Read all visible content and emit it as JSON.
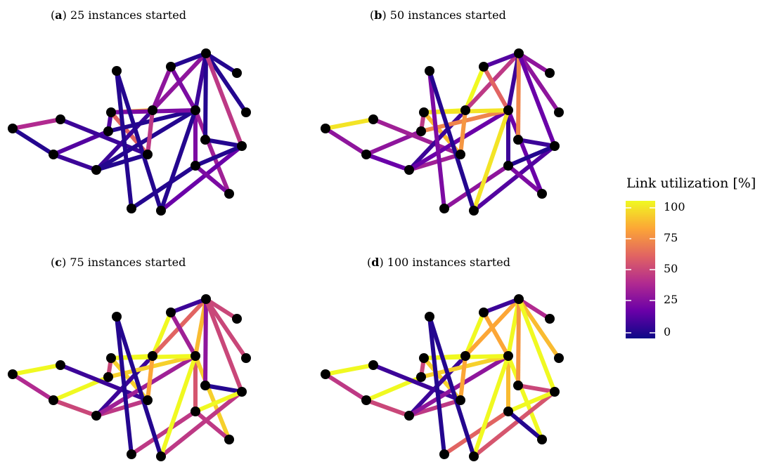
{
  "panels": [
    {
      "letter": "a",
      "caption": "25 instances started"
    },
    {
      "letter": "b",
      "caption": "50 instances started"
    },
    {
      "letter": "c",
      "caption": "75 instances started"
    },
    {
      "letter": "d",
      "caption": "100 instances started"
    }
  ],
  "colorbar": {
    "title": "Link utilization [%]",
    "ticks": [
      "100",
      "75",
      "50",
      "25",
      "0"
    ],
    "range": [
      0,
      100
    ],
    "colormap": "plasma",
    "stops": [
      "#0d0887",
      "#6a00a8",
      "#b12a90",
      "#e16462",
      "#fca636",
      "#f0f921"
    ]
  },
  "nodes": [
    "n1",
    "n2",
    "n3",
    "n4",
    "n5",
    "n6",
    "n7",
    "n8",
    "n9",
    "n10",
    "n11",
    "n12",
    "n13",
    "n14",
    "n15",
    "n16",
    "n17",
    "n18",
    "n19",
    "n20"
  ],
  "links": [
    [
      "n1",
      "n2"
    ],
    [
      "n1",
      "n3"
    ],
    [
      "n2",
      "n4"
    ],
    [
      "n2",
      "n5"
    ],
    [
      "n3",
      "n6"
    ],
    [
      "n4",
      "n6"
    ],
    [
      "n5",
      "n7"
    ],
    [
      "n6",
      "n7"
    ],
    [
      "n4",
      "n8"
    ],
    [
      "n4",
      "n9"
    ],
    [
      "n5",
      "n9"
    ],
    [
      "n6",
      "n8"
    ],
    [
      "n7",
      "n8"
    ],
    [
      "n7",
      "n9"
    ],
    [
      "n8",
      "n10"
    ],
    [
      "n8",
      "n11"
    ],
    [
      "n9",
      "n10"
    ],
    [
      "n9",
      "n11"
    ],
    [
      "n9",
      "n16"
    ],
    [
      "n9",
      "n17"
    ],
    [
      "n10",
      "n11"
    ],
    [
      "n11",
      "n12"
    ],
    [
      "n11",
      "n13"
    ],
    [
      "n11",
      "n14"
    ],
    [
      "n11",
      "n15"
    ],
    [
      "n14",
      "n15"
    ],
    [
      "n15",
      "n18"
    ],
    [
      "n16",
      "n15"
    ],
    [
      "n16",
      "n19"
    ],
    [
      "n9",
      "n18"
    ],
    [
      "n17",
      "n16"
    ],
    [
      "n19",
      "n20"
    ],
    [
      "n18",
      "n20"
    ]
  ],
  "utilization": {
    "a": [
      5,
      40,
      10,
      15,
      10,
      5,
      15,
      60,
      10,
      5,
      5,
      45,
      80,
      25,
      30,
      30,
      25,
      10,
      25,
      35,
      5,
      5,
      5,
      5,
      45,
      5,
      20,
      5,
      5,
      5,
      25,
      5,
      5
    ],
    "b": [
      30,
      95,
      20,
      30,
      35,
      35,
      45,
      85,
      10,
      20,
      70,
      75,
      100,
      95,
      100,
      45,
      60,
      10,
      10,
      20,
      15,
      30,
      30,
      70,
      20,
      10,
      15,
      5,
      30,
      95,
      25,
      25,
      5
    ],
    "c": [
      40,
      100,
      50,
      100,
      10,
      45,
      50,
      90,
      10,
      35,
      90,
      80,
      100,
      100,
      100,
      60,
      35,
      85,
      55,
      90,
      10,
      50,
      50,
      30,
      50,
      5,
      45,
      100,
      45,
      100,
      45,
      5,
      5
    ],
    "d": [
      45,
      100,
      50,
      100,
      10,
      45,
      50,
      90,
      10,
      30,
      90,
      80,
      100,
      100,
      100,
      80,
      80,
      100,
      85,
      100,
      10,
      40,
      85,
      75,
      100,
      50,
      55,
      100,
      60,
      100,
      5,
      5,
      5
    ]
  }
}
